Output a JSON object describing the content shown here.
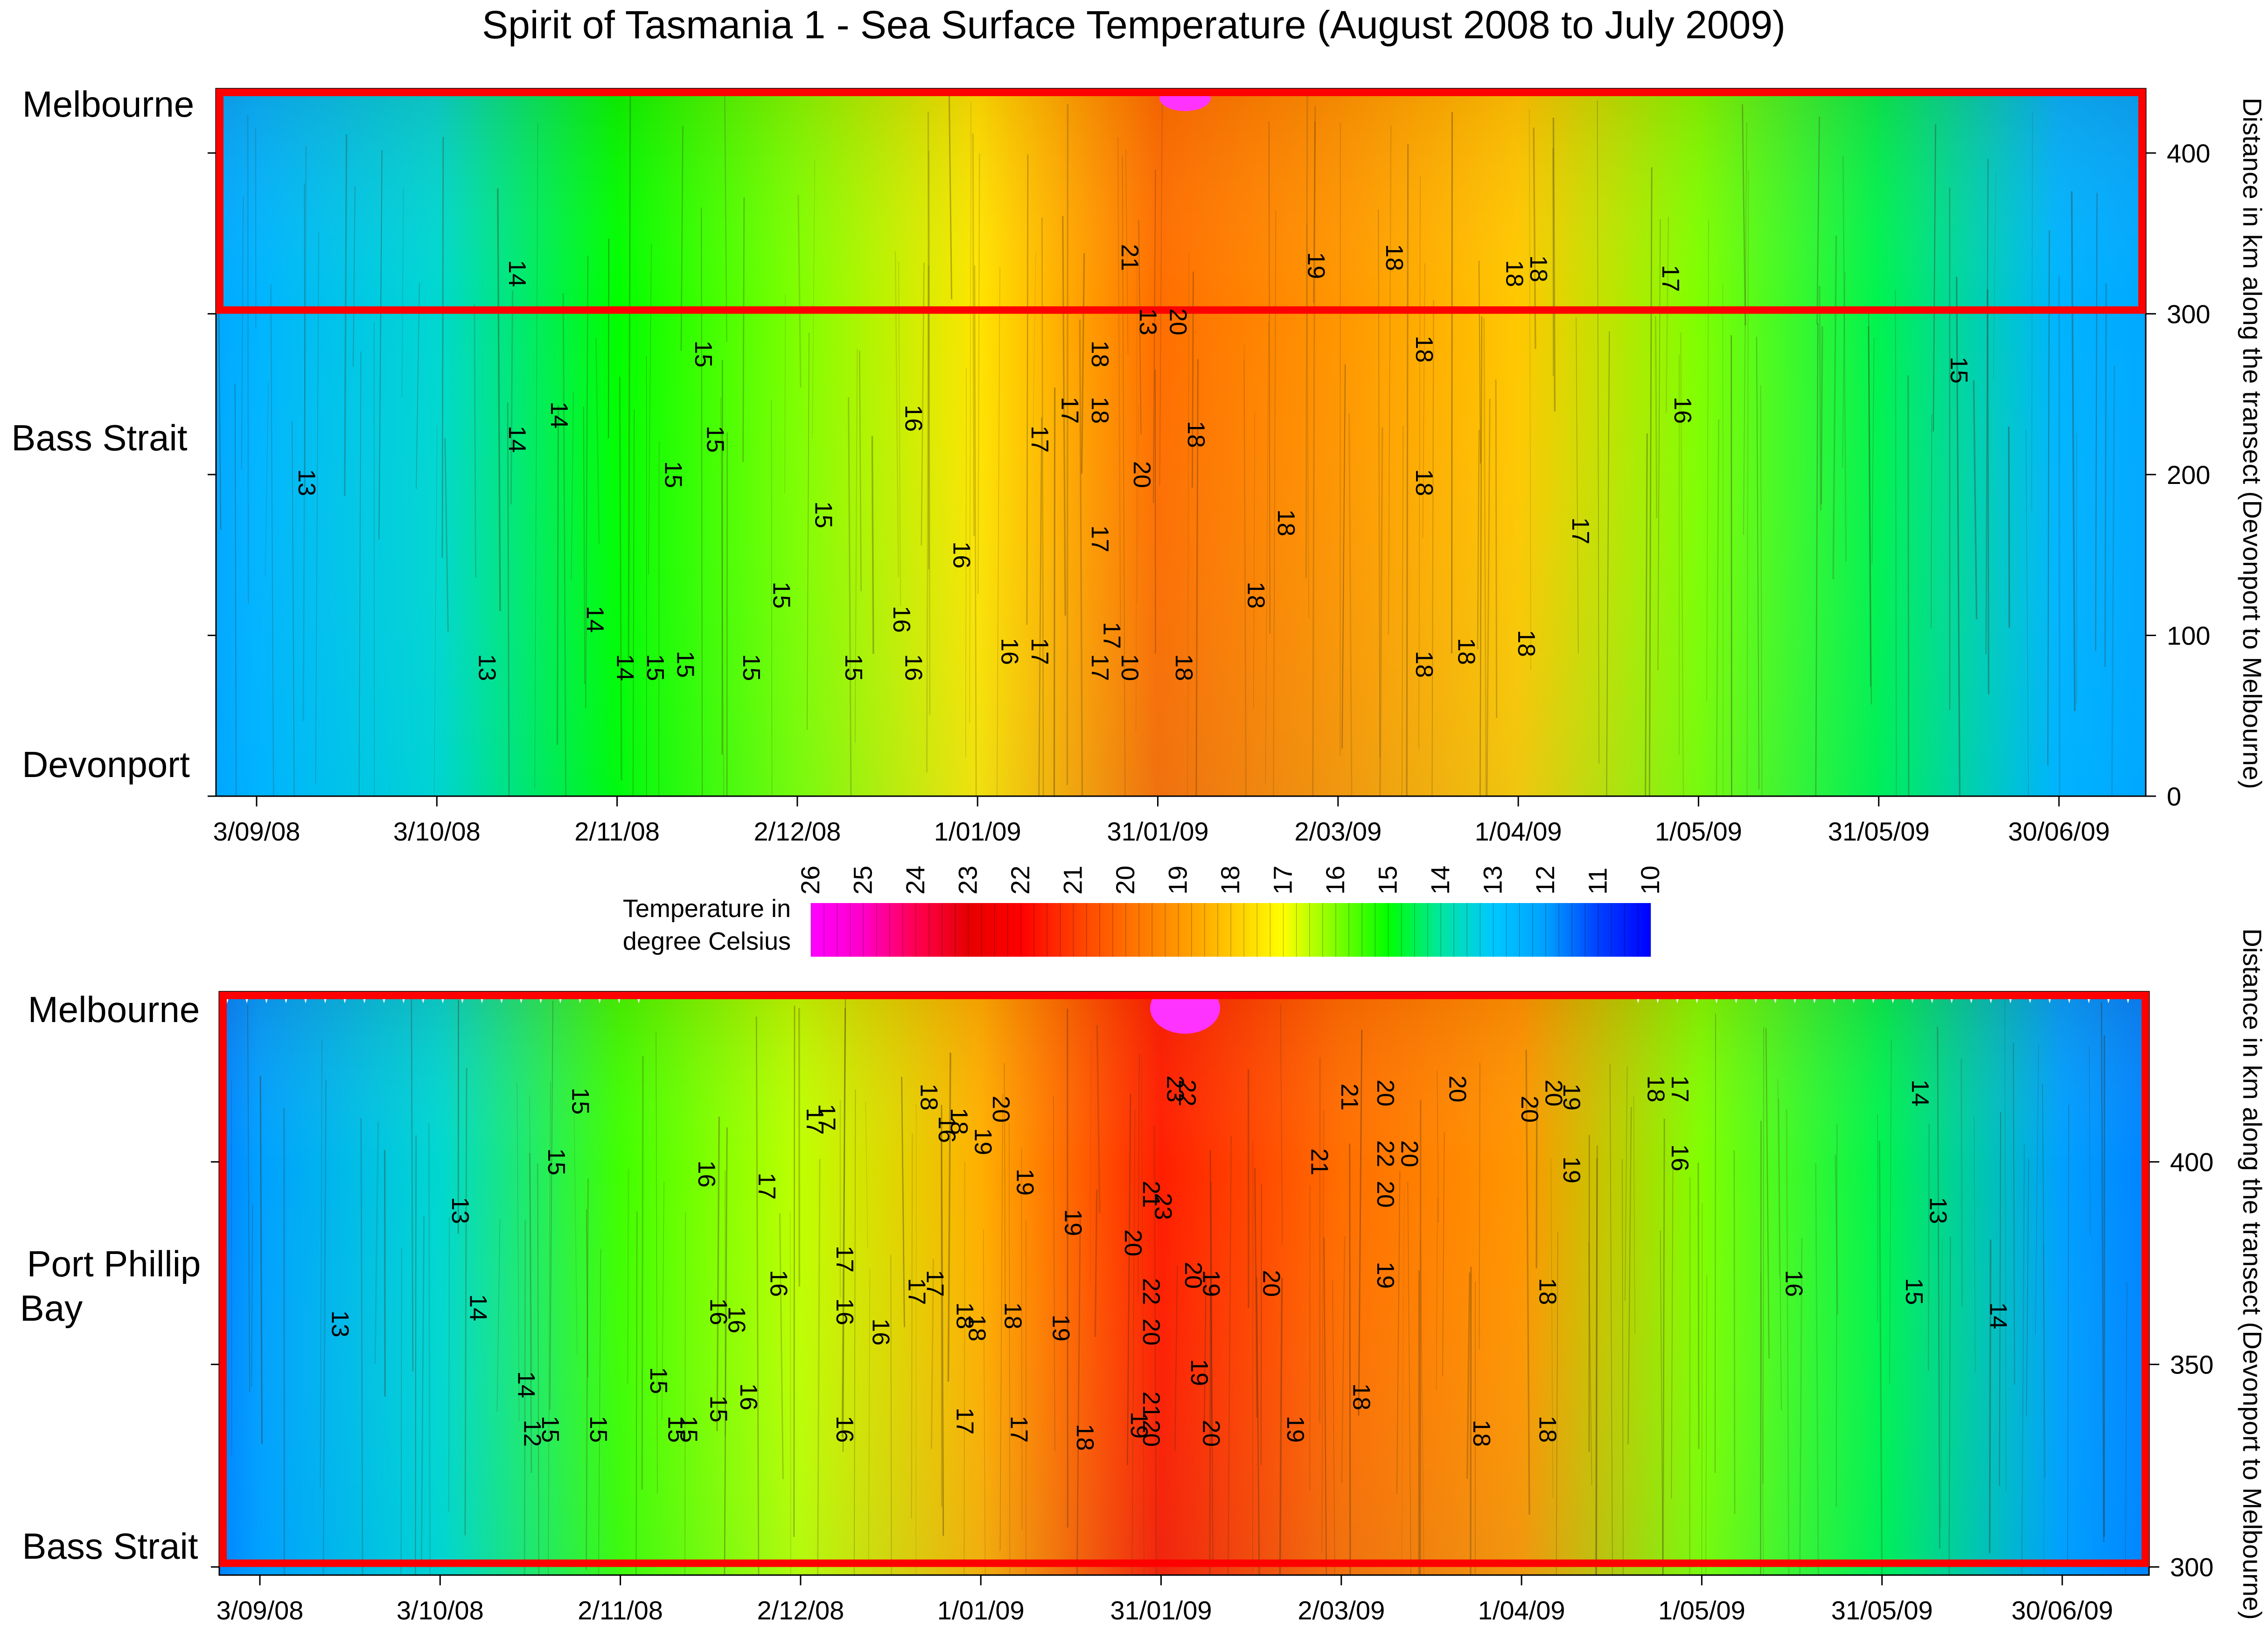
{
  "title": "Spirit of Tasmania 1 -  Sea Surface Temperature (August 2008 to July 2009)",
  "colorbar": {
    "label_line1": "Temperature in",
    "label_line2": "degree Celsius",
    "ticks": [
      26,
      25,
      24,
      23,
      22,
      21,
      20,
      19,
      18,
      17,
      16,
      15,
      14,
      13,
      12,
      11,
      10
    ],
    "colors": [
      "#ff00ff",
      "#ff0000",
      "#ff7f00",
      "#ffff00",
      "#7fff00",
      "#00ff00",
      "#00c8ff",
      "#0040ff",
      "#0000ff"
    ]
  },
  "chart_data": [
    {
      "type": "heatmap",
      "title": "",
      "xlabel": "",
      "ylabel": "Distance in km along the transect (Devonport to Melbourne)",
      "x_ticks": [
        "3/09/08",
        "3/10/08",
        "2/11/08",
        "2/12/08",
        "1/01/09",
        "31/01/09",
        "2/03/09",
        "1/04/09",
        "1/05/09",
        "31/05/09",
        "30/06/09"
      ],
      "y_ticks": [
        0,
        100,
        200,
        300,
        400
      ],
      "ylim": [
        0,
        440
      ],
      "region_labels": [
        "Melbourne",
        "Bass Strait",
        "Devonport"
      ],
      "highlight_box_km": [
        300,
        440
      ],
      "temperature_profile": {
        "dates": [
          "3/09/08",
          "3/10/08",
          "2/11/08",
          "2/12/08",
          "1/01/09",
          "31/01/09",
          "2/03/09",
          "1/04/09",
          "1/05/09",
          "31/05/09",
          "30/06/09"
        ],
        "temperature_C": [
          12.5,
          13.5,
          15.0,
          16.0,
          17.5,
          20.0,
          19.0,
          18.0,
          16.0,
          14.5,
          12.5
        ]
      },
      "contour_labels": [
        {
          "text": "14",
          "date": "2008-10-15",
          "km": 325
        },
        {
          "text": "21",
          "date": "2009-01-25",
          "km": 335
        },
        {
          "text": "19",
          "date": "2009-02-25",
          "km": 330
        },
        {
          "text": "18",
          "date": "2009-03-10",
          "km": 335
        },
        {
          "text": "18",
          "date": "2009-03-30",
          "km": 325
        },
        {
          "text": "18",
          "date": "2009-04-03",
          "km": 328
        },
        {
          "text": "17",
          "date": "2009-04-25",
          "km": 322
        },
        {
          "text": "13",
          "date": "2009-01-28",
          "km": 295
        },
        {
          "text": "20",
          "date": "2009-02-02",
          "km": 295
        },
        {
          "text": "15",
          "date": "2008-11-15",
          "km": 275
        },
        {
          "text": "18",
          "date": "2009-01-20",
          "km": 275
        },
        {
          "text": "18",
          "date": "2009-03-15",
          "km": 278
        },
        {
          "text": "14",
          "date": "2008-10-15",
          "km": 222
        },
        {
          "text": "14",
          "date": "2008-10-22",
          "km": 237
        },
        {
          "text": "15",
          "date": "2008-11-17",
          "km": 222
        },
        {
          "text": "16",
          "date": "2008-12-20",
          "km": 235
        },
        {
          "text": "17",
          "date": "2009-01-10",
          "km": 222
        },
        {
          "text": "17",
          "date": "2009-01-15",
          "km": 240
        },
        {
          "text": "18",
          "date": "2009-01-20",
          "km": 240
        },
        {
          "text": "20",
          "date": "2009-01-27",
          "km": 200
        },
        {
          "text": "18",
          "date": "2009-02-05",
          "km": 225
        },
        {
          "text": "16",
          "date": "2009-04-27",
          "km": 240
        },
        {
          "text": "15",
          "date": "2009-06-12",
          "km": 265
        },
        {
          "text": "13",
          "date": "2008-09-10",
          "km": 195
        },
        {
          "text": "15",
          "date": "2008-11-10",
          "km": 200
        },
        {
          "text": "15",
          "date": "2008-12-05",
          "km": 175
        },
        {
          "text": "18",
          "date": "2009-02-20",
          "km": 170
        },
        {
          "text": "18",
          "date": "2009-03-15",
          "km": 195
        },
        {
          "text": "16",
          "date": "2008-12-28",
          "km": 150
        },
        {
          "text": "17",
          "date": "2009-01-20",
          "km": 160
        },
        {
          "text": "18",
          "date": "2009-02-15",
          "km": 125
        },
        {
          "text": "17",
          "date": "2009-04-10",
          "km": 165
        },
        {
          "text": "14",
          "date": "2008-10-28",
          "km": 110
        },
        {
          "text": "15",
          "date": "2008-11-28",
          "km": 125
        },
        {
          "text": "16",
          "date": "2008-12-18",
          "km": 110
        },
        {
          "text": "17",
          "date": "2009-01-22",
          "km": 100
        },
        {
          "text": "18",
          "date": "2009-04-01",
          "km": 95
        },
        {
          "text": "13",
          "date": "2008-10-10",
          "km": 80
        },
        {
          "text": "14",
          "date": "2008-11-02",
          "km": 80
        },
        {
          "text": "15",
          "date": "2008-11-07",
          "km": 80
        },
        {
          "text": "15",
          "date": "2008-11-12",
          "km": 82
        },
        {
          "text": "15",
          "date": "2008-11-23",
          "km": 80
        },
        {
          "text": "15",
          "date": "2008-12-10",
          "km": 80
        },
        {
          "text": "16",
          "date": "2008-12-20",
          "km": 80
        },
        {
          "text": "16",
          "date": "2009-01-05",
          "km": 90
        },
        {
          "text": "17",
          "date": "2009-01-10",
          "km": 90
        },
        {
          "text": "17",
          "date": "2009-01-20",
          "km": 80
        },
        {
          "text": "10",
          "date": "2009-01-25",
          "km": 80
        },
        {
          "text": "18",
          "date": "2009-02-03",
          "km": 80
        },
        {
          "text": "18",
          "date": "2009-03-15",
          "km": 82
        },
        {
          "text": "18",
          "date": "2009-03-22",
          "km": 90
        }
      ]
    },
    {
      "type": "heatmap",
      "title": "",
      "xlabel": "",
      "ylabel": "Distance in km along the transect (Devonport to Melbourne)",
      "x_ticks": [
        "3/09/08",
        "3/10/08",
        "2/11/08",
        "2/12/08",
        "1/01/09",
        "31/01/09",
        "2/03/09",
        "1/04/09",
        "1/05/09",
        "31/05/09",
        "30/06/09"
      ],
      "y_ticks": [
        300,
        350,
        400
      ],
      "ylim": [
        298,
        442
      ],
      "region_labels": [
        "Melbourne",
        "Port Phillip",
        "Bay",
        "Bass Strait"
      ],
      "highlight_box_km": [
        300,
        442
      ],
      "temperature_profile": {
        "dates": [
          "3/09/08",
          "3/10/08",
          "2/11/08",
          "2/12/08",
          "1/01/09",
          "31/01/09",
          "2/03/09",
          "1/04/09",
          "1/05/09",
          "31/05/09",
          "30/06/09"
        ],
        "temperature_C": [
          12.0,
          13.5,
          15.5,
          16.5,
          18.5,
          21.5,
          20.0,
          19.0,
          16.0,
          14.5,
          12.0
        ]
      },
      "contour_labels": [
        {
          "text": "15",
          "date": "2008-10-25",
          "km": 415
        },
        {
          "text": "18",
          "date": "2008-12-22",
          "km": 416
        },
        {
          "text": "20",
          "date": "2009-01-03",
          "km": 413
        },
        {
          "text": "17",
          "date": "2008-12-03",
          "km": 410
        },
        {
          "text": "17",
          "date": "2008-12-05",
          "km": 411
        },
        {
          "text": "23",
          "date": "2009-02-01",
          "km": 418
        },
        {
          "text": "22",
          "date": "2009-02-03",
          "km": 417
        },
        {
          "text": "21",
          "date": "2009-03-02",
          "km": 416
        },
        {
          "text": "20",
          "date": "2009-03-08",
          "km": 417
        },
        {
          "text": "20",
          "date": "2009-03-20",
          "km": 418
        },
        {
          "text": "20",
          "date": "2009-04-01",
          "km": 413
        },
        {
          "text": "20",
          "date": "2009-04-05",
          "km": 417
        },
        {
          "text": "19",
          "date": "2009-04-08",
          "km": 416
        },
        {
          "text": "18",
          "date": "2009-04-22",
          "km": 418
        },
        {
          "text": "17",
          "date": "2009-04-26",
          "km": 418
        },
        {
          "text": "14",
          "date": "2009-06-05",
          "km": 417
        },
        {
          "text": "19",
          "date": "2008-12-31",
          "km": 405
        },
        {
          "text": "16",
          "date": "2008-12-25",
          "km": 408
        },
        {
          "text": "18",
          "date": "2008-12-27",
          "km": 410
        },
        {
          "text": "21",
          "date": "2009-02-25",
          "km": 400
        },
        {
          "text": "22",
          "date": "2009-03-08",
          "km": 402
        },
        {
          "text": "20",
          "date": "2009-03-12",
          "km": 402
        },
        {
          "text": "19",
          "date": "2009-04-08",
          "km": 398
        },
        {
          "text": "16",
          "date": "2009-04-26",
          "km": 401
        },
        {
          "text": "15",
          "date": "2008-10-21",
          "km": 400
        },
        {
          "text": "16",
          "date": "2008-11-15",
          "km": 397
        },
        {
          "text": "17",
          "date": "2008-11-25",
          "km": 394
        },
        {
          "text": "19",
          "date": "2009-01-07",
          "km": 395
        },
        {
          "text": "13",
          "date": "2008-10-05",
          "km": 388
        },
        {
          "text": "13",
          "date": "2009-06-08",
          "km": 388
        },
        {
          "text": "21",
          "date": "2009-01-28",
          "km": 392
        },
        {
          "text": "23",
          "date": "2009-01-30",
          "km": 389
        },
        {
          "text": "20",
          "date": "2009-03-08",
          "km": 392
        },
        {
          "text": "19",
          "date": "2009-01-15",
          "km": 385
        },
        {
          "text": "20",
          "date": "2009-01-25",
          "km": 380
        },
        {
          "text": "17",
          "date": "2008-12-08",
          "km": 376
        },
        {
          "text": "17",
          "date": "2008-12-20",
          "km": 368
        },
        {
          "text": "17",
          "date": "2008-12-23",
          "km": 370
        },
        {
          "text": "16",
          "date": "2008-11-27",
          "km": 370
        },
        {
          "text": "16",
          "date": "2008-12-08",
          "km": 363
        },
        {
          "text": "14",
          "date": "2008-10-08",
          "km": 364
        },
        {
          "text": "13",
          "date": "2008-09-15",
          "km": 360
        },
        {
          "text": "16",
          "date": "2008-11-17",
          "km": 363
        },
        {
          "text": "16",
          "date": "2008-11-20",
          "km": 361
        },
        {
          "text": "16",
          "date": "2008-12-14",
          "km": 358
        },
        {
          "text": "18",
          "date": "2008-12-28",
          "km": 362
        },
        {
          "text": "18",
          "date": "2008-12-30",
          "km": 359
        },
        {
          "text": "18",
          "date": "2009-01-05",
          "km": 362
        },
        {
          "text": "19",
          "date": "2009-01-13",
          "km": 359
        },
        {
          "text": "22",
          "date": "2009-01-28",
          "km": 368
        },
        {
          "text": "20",
          "date": "2009-01-28",
          "km": 358
        },
        {
          "text": "20",
          "date": "2009-02-04",
          "km": 372
        },
        {
          "text": "19",
          "date": "2009-02-07",
          "km": 370
        },
        {
          "text": "20",
          "date": "2009-02-17",
          "km": 370
        },
        {
          "text": "19",
          "date": "2009-03-08",
          "km": 372
        },
        {
          "text": "18",
          "date": "2009-04-04",
          "km": 368
        },
        {
          "text": "16",
          "date": "2009-05-15",
          "km": 370
        },
        {
          "text": "15",
          "date": "2009-06-04",
          "km": 368
        },
        {
          "text": "14",
          "date": "2009-06-18",
          "km": 362
        },
        {
          "text": "19",
          "date": "2009-02-05",
          "km": 348
        },
        {
          "text": "14",
          "date": "2008-10-16",
          "km": 345
        },
        {
          "text": "15",
          "date": "2008-11-07",
          "km": 346
        },
        {
          "text": "15",
          "date": "2008-11-17",
          "km": 339
        },
        {
          "text": "16",
          "date": "2008-11-22",
          "km": 342
        },
        {
          "text": "18",
          "date": "2009-03-04",
          "km": 342
        },
        {
          "text": "12",
          "date": "2008-10-17",
          "km": 333
        },
        {
          "text": "15",
          "date": "2008-10-20",
          "km": 334
        },
        {
          "text": "15",
          "date": "2008-10-28",
          "km": 334
        },
        {
          "text": "15",
          "date": "2008-11-10",
          "km": 334
        },
        {
          "text": "15",
          "date": "2008-11-12",
          "km": 334
        },
        {
          "text": "16",
          "date": "2008-12-08",
          "km": 334
        },
        {
          "text": "17",
          "date": "2008-12-28",
          "km": 336
        },
        {
          "text": "17",
          "date": "2009-01-06",
          "km": 334
        },
        {
          "text": "18",
          "date": "2009-01-17",
          "km": 332
        },
        {
          "text": "19",
          "date": "2009-01-26",
          "km": 335
        },
        {
          "text": "21",
          "date": "2009-01-28",
          "km": 340
        },
        {
          "text": "20",
          "date": "2009-01-28",
          "km": 333
        },
        {
          "text": "20",
          "date": "2009-02-07",
          "km": 333
        },
        {
          "text": "19",
          "date": "2009-02-21",
          "km": 334
        },
        {
          "text": "18",
          "date": "2009-03-24",
          "km": 333
        },
        {
          "text": "18",
          "date": "2009-04-04",
          "km": 334
        }
      ]
    }
  ]
}
